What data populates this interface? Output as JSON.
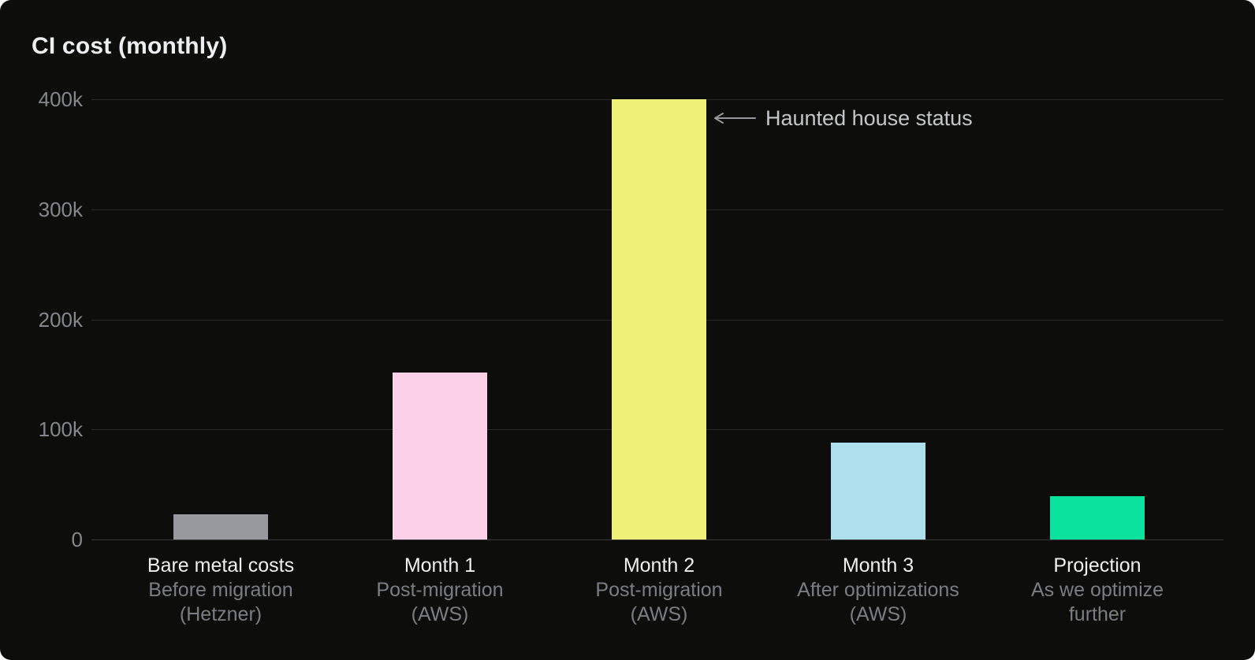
{
  "title": "CI cost (monthly)",
  "colors": {
    "card_background": "#0d0d0c",
    "page_background": "#ffffff",
    "title_text": "#eceef0",
    "ytick_text": "#85878c",
    "gridline": "#29292b",
    "baseline": "#37383a",
    "xlabel_main_text": "#f0f0f1",
    "xlabel_sub_text": "#7b7d83",
    "annotation_text": "#c5c6c9",
    "annotation_arrow": "#98989c"
  },
  "chart_data": {
    "type": "bar",
    "title": "CI cost (monthly)",
    "xlabel": "",
    "ylabel": "",
    "ylim": [
      0,
      400000
    ],
    "grid": true,
    "legend": false,
    "categories": [
      "Bare metal costs",
      "Month 1",
      "Month 2",
      "Month 3",
      "Projection"
    ],
    "sublabels": [
      [
        "Before migration",
        "(Hetzner)"
      ],
      [
        "Post-migration",
        "(AWS)"
      ],
      [
        "Post-migration",
        "(AWS)"
      ],
      [
        "After optimizations",
        "(AWS)"
      ],
      [
        "As we optimize",
        "further"
      ]
    ],
    "values": [
      23000,
      152000,
      400000,
      88000,
      39000
    ],
    "bar_colors": [
      "#97999f",
      "#fcd0e7",
      "#eef077",
      "#ade0ec",
      "#0ae29e"
    ],
    "yticks": [
      {
        "label": "0",
        "value": 0
      },
      {
        "label": "100k",
        "value": 100000
      },
      {
        "label": "200k",
        "value": 200000
      },
      {
        "label": "300k",
        "value": 300000
      },
      {
        "label": "400k",
        "value": 400000
      }
    ],
    "annotation": {
      "text": "Haunted house status",
      "target_category": "Month 2",
      "arrow_direction": "left"
    }
  }
}
